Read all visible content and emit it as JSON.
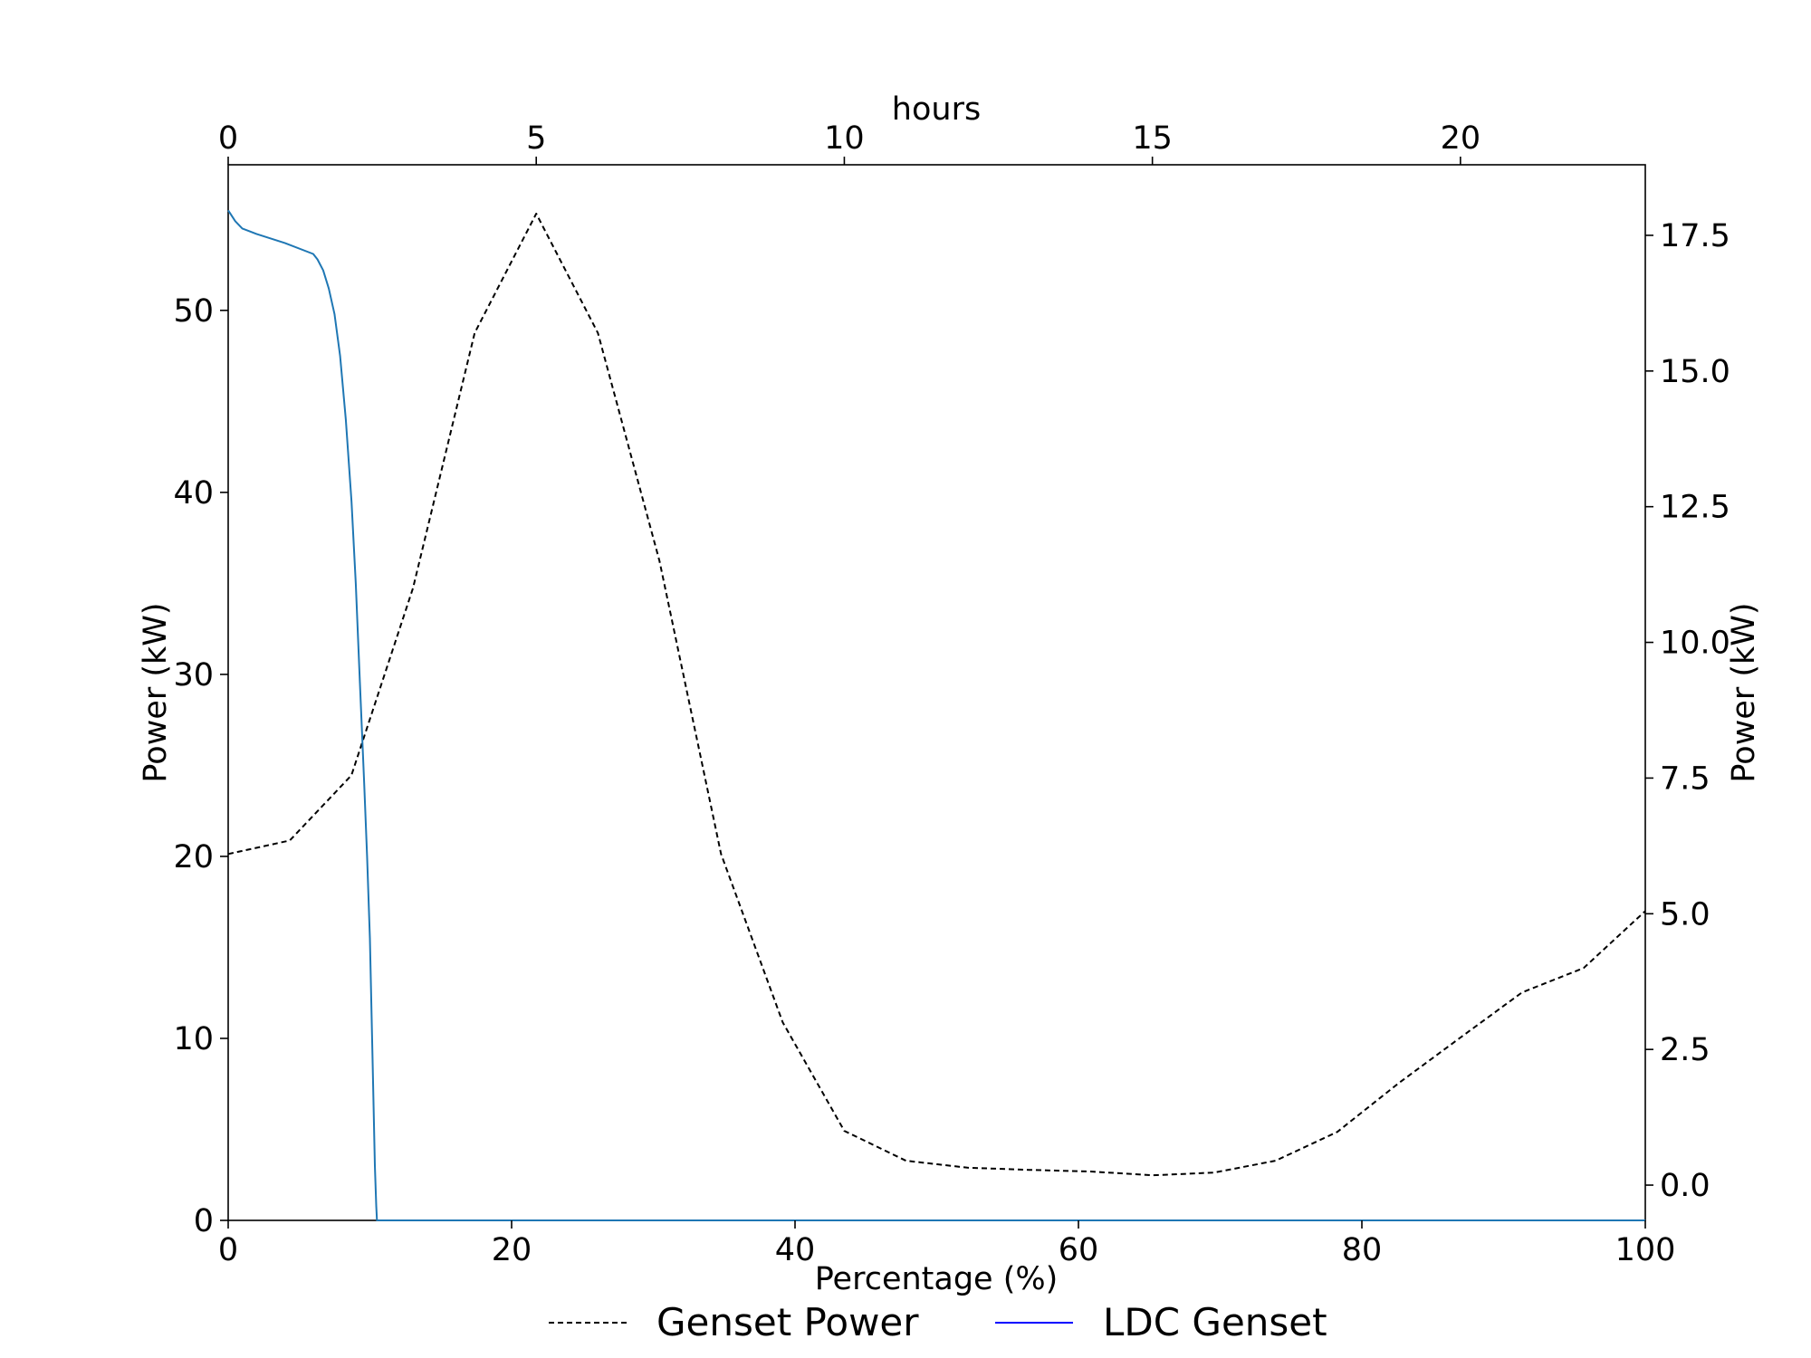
{
  "chart_data": {
    "type": "line",
    "axes": {
      "x_bottom": {
        "label": "Percentage (%)",
        "range": [
          0,
          100
        ],
        "ticks": [
          0,
          20,
          40,
          60,
          80,
          100
        ]
      },
      "x_top": {
        "label": "hours",
        "range": [
          0,
          23
        ],
        "ticks": [
          0,
          5,
          10,
          15,
          20
        ]
      },
      "y_left": {
        "label": "Power (kW)",
        "range": [
          0,
          58
        ],
        "ticks": [
          0,
          10,
          20,
          30,
          40,
          50
        ]
      },
      "y_right": {
        "label": "Power (kW)",
        "range": [
          -0.65,
          18.8
        ],
        "ticks": [
          "0.0",
          "2.5",
          "5.0",
          "7.5",
          "10.0",
          "12.5",
          "15.0",
          "17.5"
        ]
      }
    },
    "grid": false,
    "legend": {
      "placement": "bottom-center",
      "entries": [
        "Genset Power",
        "LDC Genset"
      ]
    },
    "series": [
      {
        "name": "Genset Power",
        "style": "dashed",
        "color": "#000000",
        "x_axis": "hours",
        "y_axis": "right",
        "x": [
          0,
          1,
          2,
          3,
          4,
          5,
          6,
          7,
          8,
          9,
          10,
          11,
          12,
          13,
          14,
          15,
          16,
          17,
          18,
          19,
          20,
          21,
          22,
          23
        ],
        "y": [
          6.1,
          6.35,
          7.55,
          11.0,
          15.7,
          17.9,
          15.7,
          11.5,
          6.1,
          3.0,
          1.0,
          0.45,
          0.32,
          0.28,
          0.25,
          0.18,
          0.23,
          0.45,
          0.98,
          1.88,
          2.72,
          3.55,
          4.0,
          5.05
        ]
      },
      {
        "name": "LDC Genset",
        "style": "solid",
        "color": "#1f77b4",
        "legend_color": "#0000ff",
        "x_axis": "percentage",
        "y_axis": "left",
        "x": [
          0,
          0.5,
          1,
          2,
          4,
          6,
          6.3,
          6.7,
          7.1,
          7.5,
          7.9,
          8.3,
          8.7,
          9.0,
          9.3,
          9.6,
          9.8,
          10.0,
          10.2,
          10.35,
          10.45,
          10.5,
          11,
          20,
          40,
          60,
          80,
          100
        ],
        "y": [
          55.5,
          54.9,
          54.5,
          54.2,
          53.7,
          53.1,
          52.8,
          52.2,
          51.2,
          49.8,
          47.5,
          44.0,
          39.5,
          35.0,
          29.5,
          24.0,
          20.0,
          15.5,
          8.5,
          3.0,
          0.8,
          0,
          0,
          0,
          0,
          0,
          0,
          0
        ]
      }
    ]
  }
}
